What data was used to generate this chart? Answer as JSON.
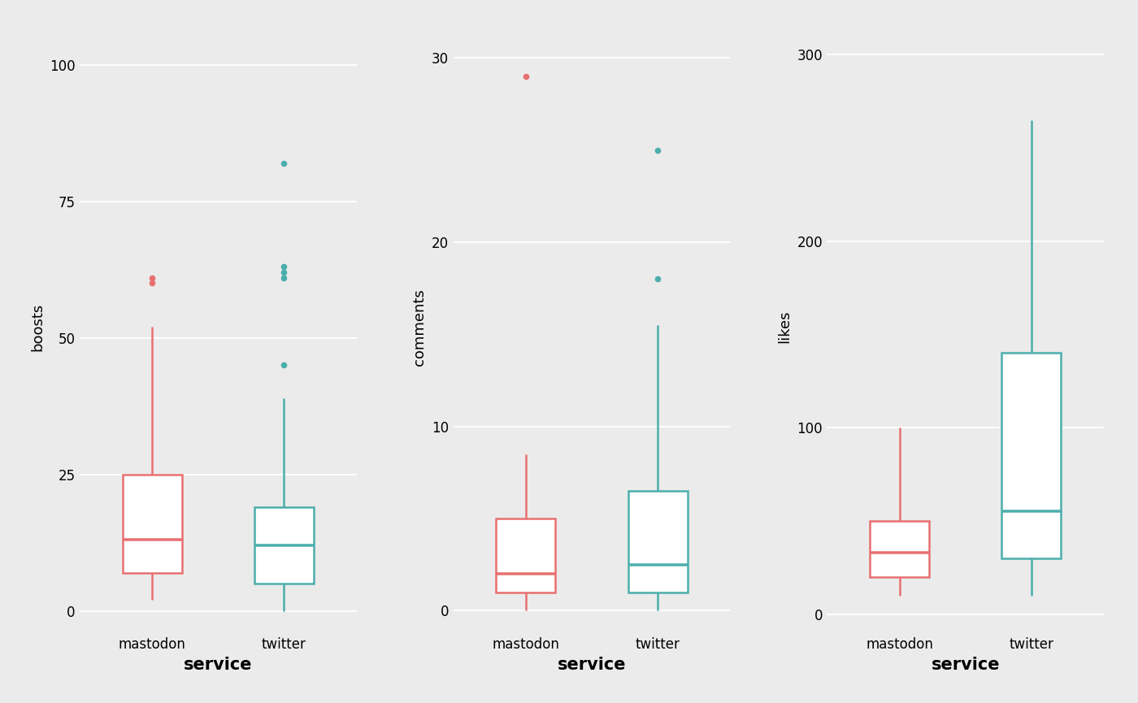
{
  "panels": [
    {
      "ylabel": "boosts",
      "xlabel": "service",
      "yticks": [
        0,
        25,
        50,
        75,
        100
      ],
      "ylim": [
        -4,
        108
      ],
      "boxes": [
        {
          "label": "mastodon",
          "color": "#E87070",
          "q1": 7,
          "median": 13,
          "q3": 25,
          "whisker_low": 2,
          "whisker_high": 52,
          "outliers": [
            60,
            61
          ]
        },
        {
          "label": "twitter",
          "color": "#4BAEAC",
          "q1": 5,
          "median": 12,
          "q3": 19,
          "whisker_low": 0,
          "whisker_high": 39,
          "outliers": [
            45,
            61,
            62,
            63,
            82
          ]
        }
      ]
    },
    {
      "ylabel": "comments",
      "xlabel": "service",
      "yticks": [
        0,
        10,
        20,
        30
      ],
      "ylim": [
        -1.2,
        32
      ],
      "boxes": [
        {
          "label": "mastodon",
          "color": "#E87070",
          "q1": 1,
          "median": 2,
          "q3": 5,
          "whisker_low": 0,
          "whisker_high": 8.5,
          "outliers": [
            29
          ]
        },
        {
          "label": "twitter",
          "color": "#4BAEAC",
          "q1": 1,
          "median": 2.5,
          "q3": 6.5,
          "whisker_low": 0,
          "whisker_high": 15.5,
          "outliers": [
            18,
            25
          ]
        }
      ]
    },
    {
      "ylabel": "likes",
      "xlabel": "service",
      "yticks": [
        0,
        100,
        200,
        300
      ],
      "ylim": [
        -10,
        318
      ],
      "boxes": [
        {
          "label": "mastodon",
          "color": "#E87070",
          "q1": 20,
          "median": 33,
          "q3": 50,
          "whisker_low": 10,
          "whisker_high": 100,
          "outliers": []
        },
        {
          "label": "twitter",
          "color": "#4BAEAC",
          "q1": 30,
          "median": 55,
          "q3": 140,
          "whisker_low": 10,
          "whisker_high": 265,
          "outliers": []
        }
      ]
    }
  ],
  "bg_color": "#EBEBEB",
  "panel_bg": "#EBEBEB",
  "fig_bg": "#EBEBEB",
  "box_width": 0.45,
  "linewidth": 1.8,
  "label_fontsize": 15,
  "tick_fontsize": 12,
  "ylabel_fontsize": 13
}
